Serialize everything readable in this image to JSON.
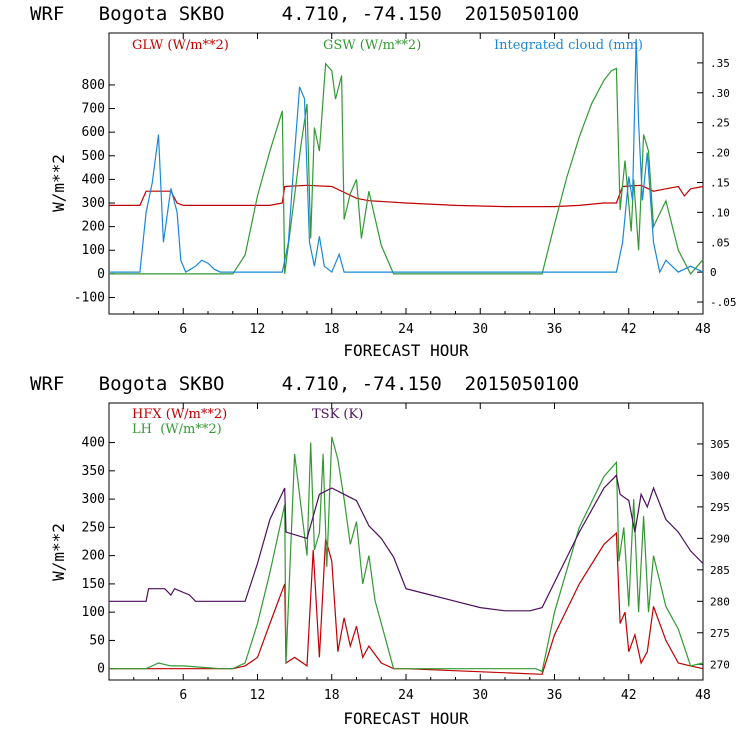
{
  "chart_data": [
    {
      "type": "line",
      "title": "WRF   Bogota SKBO     4.710, -74.150  2015050100",
      "xlabel": "FORECAST HOUR",
      "ylabel": "W/m**2",
      "xlim": [
        0,
        48
      ],
      "xticks": [
        6,
        12,
        18,
        24,
        30,
        36,
        42,
        48
      ],
      "ylim": [
        -170,
        1020
      ],
      "yticks": [
        -100,
        0,
        100,
        200,
        300,
        400,
        500,
        600,
        700,
        800
      ],
      "y2label": "",
      "y2lim": [
        -0.07,
        0.4
      ],
      "y2ticks": [
        -0.05,
        0,
        0.05,
        0.1,
        0.15,
        0.2,
        0.25,
        0.3,
        0.35
      ],
      "y2ticklabels": [
        "-.05",
        "0",
        ".05",
        ".10",
        ".15",
        ".20",
        ".25",
        ".30",
        ".35"
      ],
      "series": [
        {
          "name": "GLW (W/m**2)",
          "color": "#c00000",
          "axis": "left",
          "x": [
            0,
            2.5,
            3,
            5,
            5.5,
            6,
            8,
            10,
            12,
            13,
            14,
            14.2,
            16,
            18,
            20,
            21,
            24,
            28,
            32,
            36,
            38,
            40,
            41,
            41.5,
            43,
            44,
            45,
            46,
            46.5,
            47,
            48
          ],
          "y": [
            290,
            290,
            350,
            350,
            300,
            290,
            290,
            290,
            290,
            290,
            300,
            370,
            375,
            370,
            320,
            310,
            300,
            290,
            285,
            285,
            290,
            300,
            300,
            370,
            375,
            350,
            360,
            370,
            330,
            360,
            370
          ]
        },
        {
          "name": "GSW (W/m**2)",
          "color": "#339933",
          "axis": "left",
          "x": [
            0,
            10,
            11,
            12,
            13,
            14,
            14.2,
            15.5,
            16,
            16.3,
            16.6,
            17,
            17.5,
            18,
            18.3,
            18.8,
            19,
            19.5,
            20,
            20.4,
            21,
            22,
            23,
            35,
            36,
            37,
            38,
            39,
            40,
            40.6,
            41,
            41.3,
            41.7,
            42.2,
            42.4,
            42.8,
            43.2,
            43.6,
            44,
            45,
            46,
            47,
            48
          ],
          "y": [
            0,
            0,
            80,
            330,
            520,
            690,
            0,
            540,
            720,
            150,
            620,
            520,
            890,
            860,
            740,
            840,
            230,
            340,
            400,
            150,
            350,
            120,
            0,
            0,
            210,
            410,
            580,
            720,
            820,
            860,
            870,
            270,
            480,
            180,
            400,
            100,
            590,
            520,
            200,
            310,
            100,
            0,
            60
          ]
        },
        {
          "name": "Integrated cloud (mm)",
          "color": "#1a88d8",
          "axis": "right",
          "x": [
            0,
            2.5,
            3,
            3.5,
            4,
            4.4,
            5,
            5.5,
            5.8,
            6.2,
            6.6,
            7,
            7.5,
            8,
            8.5,
            9,
            9.5,
            14,
            14.5,
            15,
            15.4,
            15.8,
            16.2,
            16.6,
            17,
            17.4,
            18,
            18.6,
            19,
            20,
            36,
            41,
            41.5,
            42,
            42.3,
            42.6,
            42.8,
            43.1,
            43.5,
            44,
            44.5,
            45,
            46,
            47,
            48
          ],
          "y": [
            0,
            0,
            0.1,
            0.15,
            0.23,
            0.05,
            0.14,
            0.1,
            0.02,
            0,
            0.005,
            0.01,
            0.02,
            0.015,
            0.005,
            0,
            0,
            0,
            0.05,
            0.2,
            0.31,
            0.29,
            0.05,
            0.01,
            0.06,
            0.01,
            0,
            0.03,
            0,
            0,
            0,
            0,
            0.05,
            0.16,
            0.12,
            0.39,
            0.25,
            0.12,
            0.2,
            0.05,
            0,
            0.02,
            0,
            0.01,
            0
          ]
        }
      ],
      "legend": [
        "GLW (W/m**2)",
        "GSW (W/m**2)",
        "Integrated cloud (mm)"
      ]
    },
    {
      "type": "line",
      "title": "WRF   Bogota SKBO     4.710, -74.150  2015050100",
      "xlabel": "FORECAST HOUR",
      "ylabel": "W/m**2",
      "xlim": [
        0,
        48
      ],
      "xticks": [
        6,
        12,
        18,
        24,
        30,
        36,
        42,
        48
      ],
      "ylim": [
        -20,
        470
      ],
      "yticks": [
        0,
        50,
        100,
        150,
        200,
        250,
        300,
        350,
        400
      ],
      "y2lim": [
        267.5,
        311.5
      ],
      "y2ticks": [
        270,
        275,
        280,
        285,
        290,
        295,
        300,
        305
      ],
      "y2ticklabels": [
        "270",
        "275",
        "280",
        "285",
        "290",
        "295",
        "300",
        "305"
      ],
      "series": [
        {
          "name": "HFX (W/m**2)",
          "color": "#c00000",
          "axis": "left",
          "x": [
            0,
            10,
            11,
            12,
            13,
            14.2,
            14.3,
            15,
            16,
            16.5,
            17,
            17.5,
            18,
            18.5,
            19,
            19.5,
            20,
            20.5,
            21,
            22,
            23,
            24,
            35,
            36,
            38,
            40,
            41,
            41.3,
            41.7,
            42,
            42.5,
            43,
            43.5,
            44,
            45,
            46,
            47,
            48
          ],
          "y": [
            0,
            0,
            5,
            20,
            80,
            150,
            10,
            20,
            5,
            210,
            20,
            230,
            190,
            30,
            90,
            40,
            75,
            20,
            40,
            10,
            0,
            0,
            -10,
            60,
            150,
            220,
            240,
            80,
            100,
            30,
            60,
            10,
            30,
            110,
            50,
            10,
            5,
            0
          ]
        },
        {
          "name": "LH (W/m**2)",
          "color": "#339933",
          "axis": "left",
          "x": [
            0,
            3,
            4,
            5,
            6,
            9,
            10,
            11,
            12,
            13,
            14.2,
            14.3,
            15,
            16,
            16.3,
            16.6,
            17,
            17.3,
            17.6,
            18,
            18.5,
            19,
            19.5,
            20,
            20.5,
            21,
            21.5,
            22,
            23,
            24,
            34.5,
            35,
            36,
            38,
            40,
            41,
            41.2,
            41.6,
            42,
            42.4,
            42.8,
            43.2,
            43.6,
            44,
            45,
            46,
            47,
            48
          ],
          "y": [
            0,
            0,
            10,
            5,
            5,
            0,
            0,
            10,
            80,
            170,
            290,
            10,
            380,
            200,
            400,
            210,
            240,
            380,
            180,
            410,
            370,
            300,
            220,
            260,
            150,
            200,
            120,
            80,
            0,
            0,
            0,
            -5,
            100,
            250,
            340,
            365,
            190,
            250,
            110,
            300,
            100,
            270,
            100,
            200,
            110,
            70,
            5,
            10
          ]
        },
        {
          "name": "TSK (K)",
          "color": "#4b0f5c",
          "axis": "right",
          "x": [
            0,
            3,
            3.2,
            4.5,
            5,
            5.3,
            6.5,
            7,
            10,
            11,
            12,
            13,
            14.2,
            14.3,
            16,
            17,
            18,
            19,
            20,
            21,
            22,
            23,
            24,
            26,
            28,
            30,
            32,
            34,
            35,
            36,
            38,
            40,
            41,
            41.3,
            42,
            42.5,
            43,
            43.5,
            44,
            45,
            46,
            47,
            48
          ],
          "y": [
            280,
            280,
            282,
            282,
            281,
            282,
            281,
            280,
            280,
            280,
            286,
            293,
            298,
            291,
            290,
            297,
            298,
            297,
            296,
            292,
            290,
            287,
            282,
            281,
            280,
            279,
            278.5,
            278.5,
            279,
            283,
            291,
            298,
            300,
            297,
            296,
            291,
            297,
            295,
            298,
            293,
            291,
            288,
            286
          ]
        }
      ],
      "legend": [
        "HFX (W/m**2)",
        "LH  (W/m**2)",
        "TSK (K)"
      ]
    }
  ],
  "colors": {
    "glw": "#c00000",
    "gsw": "#339933",
    "cloud": "#1a88d8",
    "hfx": "#c00000",
    "lh": "#339933",
    "tsk": "#4b0f5c"
  }
}
